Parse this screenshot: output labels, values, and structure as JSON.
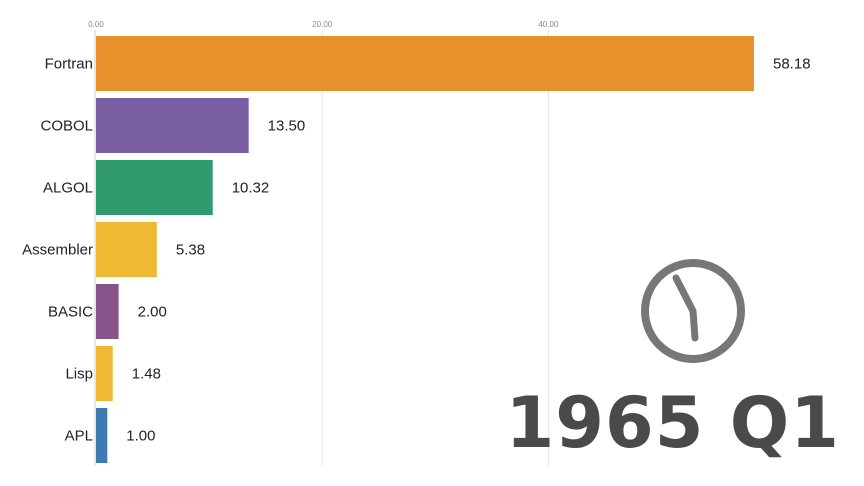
{
  "chart_data": {
    "type": "bar",
    "orientation": "horizontal",
    "categories": [
      "Fortran",
      "COBOL",
      "ALGOL",
      "Assembler",
      "BASIC",
      "Lisp",
      "APL"
    ],
    "values": [
      58.18,
      13.5,
      10.32,
      5.38,
      2.0,
      1.48,
      1.0
    ],
    "value_labels": [
      "58.18",
      "13.50",
      "10.32",
      "5.38",
      "2.00",
      "1.48",
      "1.00"
    ],
    "colors": [
      "#e8912a",
      "#7b5fa3",
      "#2e9a6e",
      "#f0b933",
      "#87538a",
      "#f0b933",
      "#3f7ab0"
    ],
    "xlim": [
      0,
      58.18
    ],
    "x_ticks": [
      0,
      20,
      40
    ],
    "x_tick_labels": [
      "0.00",
      "20.00",
      "40.00"
    ],
    "grid": true,
    "period": "1965 Q1"
  },
  "clock_icon": "clock-icon",
  "clock_color": "#777777"
}
